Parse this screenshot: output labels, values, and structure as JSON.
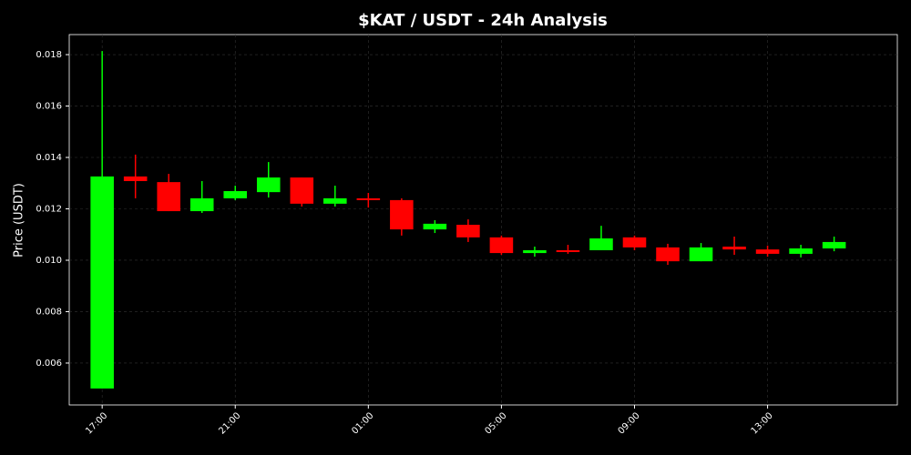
{
  "chart_data": {
    "type": "candlestick",
    "title": "$KAT / USDT - 24h Analysis",
    "y_label": "Price (USDT)",
    "x": [
      "17:00",
      "18:00",
      "19:00",
      "20:00",
      "21:00",
      "22:00",
      "23:00",
      "00:00",
      "01:00",
      "02:00",
      "03:00",
      "04:00",
      "05:00",
      "06:00",
      "07:00",
      "08:00",
      "09:00",
      "10:00",
      "11:00",
      "12:00",
      "13:00",
      "14:00",
      "15:00"
    ],
    "open": [
      0.00501,
      0.01326,
      0.01304,
      0.01191,
      0.01241,
      0.01265,
      0.01322,
      0.0122,
      0.01241,
      0.01234,
      0.0112,
      0.01138,
      0.01089,
      0.01028,
      0.01039,
      0.01039,
      0.01089,
      0.0105,
      0.00996,
      0.01053,
      0.01042,
      0.01025,
      0.01046
    ],
    "high": [
      0.01814,
      0.01411,
      0.01336,
      0.01308,
      0.0129,
      0.01382,
      0.01322,
      0.0129,
      0.01262,
      0.01241,
      0.01156,
      0.01159,
      0.01096,
      0.01053,
      0.0106,
      0.01134,
      0.01096,
      0.01064,
      0.01067,
      0.01092,
      0.01057,
      0.0106,
      0.01092
    ],
    "low": [
      0.00501,
      0.01241,
      0.01191,
      0.01184,
      0.01234,
      0.01244,
      0.01209,
      0.01209,
      0.01205,
      0.01096,
      0.01106,
      0.01071,
      0.01021,
      0.01014,
      0.01025,
      0.01039,
      0.01039,
      0.00982,
      0.00996,
      0.01021,
      0.01014,
      0.01011,
      0.01035
    ],
    "close": [
      0.01326,
      0.01308,
      0.01191,
      0.01241,
      0.01269,
      0.01322,
      0.0122,
      0.01241,
      0.01234,
      0.0112,
      0.01142,
      0.01089,
      0.01028,
      0.01039,
      0.01032,
      0.01085,
      0.0105,
      0.00996,
      0.0105,
      0.01042,
      0.01025,
      0.01046,
      0.01071
    ],
    "up_color": "#00ff00",
    "down_color": "#ff0000",
    "xlim": [
      -0.99,
      23.9
    ],
    "xticks": [
      {
        "value": 0,
        "label": "17:00"
      },
      {
        "value": 4,
        "label": "21:00"
      },
      {
        "value": 8,
        "label": "01:00"
      },
      {
        "value": 12,
        "label": "05:00"
      },
      {
        "value": 16,
        "label": "09:00"
      },
      {
        "value": 20,
        "label": "13:00"
      }
    ],
    "ylim": [
      0.00437,
      0.01878
    ],
    "yticks": [
      0.006,
      0.008,
      {
        "value": 0.01,
        "label": "0.010"
      },
      0.012,
      0.014,
      0.016,
      0.018
    ],
    "grid": true
  }
}
